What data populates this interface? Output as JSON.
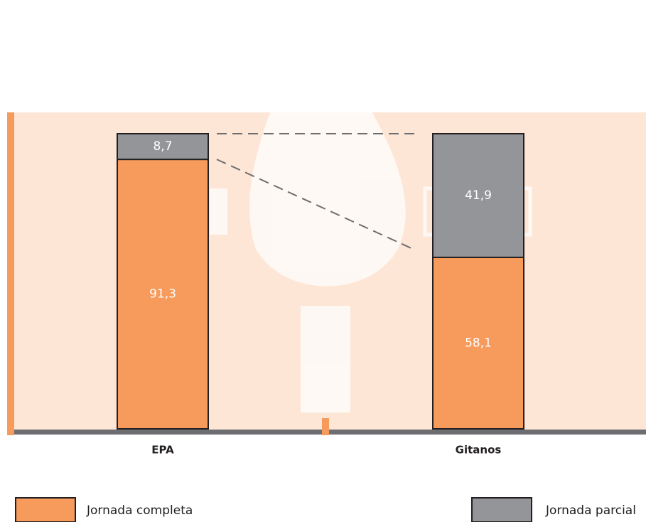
{
  "chart_data": {
    "type": "bar",
    "stacked": true,
    "categories": [
      "EPA",
      "Gitanos"
    ],
    "series": [
      {
        "name": "Jornada completa",
        "color": "#f79b5c",
        "values": [
          91.3,
          58.1
        ],
        "value_labels": [
          "91,3",
          "58,1"
        ]
      },
      {
        "name": "Jornada parcial",
        "color": "#939598",
        "values": [
          8.7,
          41.9
        ],
        "value_labels": [
          "8,7",
          "41,9"
        ]
      }
    ],
    "ylim": [
      0,
      100
    ]
  }
}
